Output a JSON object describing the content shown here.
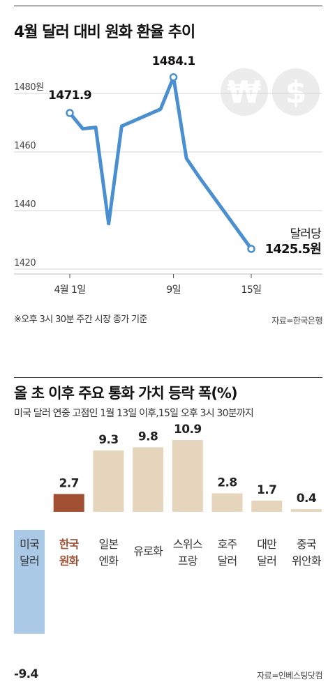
{
  "chart1": {
    "title": "4월 달러 대비 원화 환율 추이",
    "note": "※오후 3시 30분 주간 시장 종가 기준",
    "source": "자료=한국은행",
    "end_label_title": "달러당",
    "end_label_value": "1425.5원",
    "colors": {
      "line": "#4a8fd0",
      "grid": "#d5d5d5",
      "watermark": "#ececec"
    },
    "icons": [
      "won-coin-icon",
      "dollar-coin-icon"
    ]
  },
  "chart2": {
    "title": "올 초 이후 주요 통화 가치 등락 폭(%)",
    "subtitle": "미국 달러 연중 고점인 1월 13일 이후,15일 오후 3시 30분까지",
    "source": "자료=인베스팅닷컴",
    "colors": {
      "negative": "#a9c9e6",
      "highlight": "#a04f32",
      "positive": "#e6d5bd",
      "highlight_label": "#a04f32"
    }
  },
  "chart_data": [
    {
      "type": "line",
      "title": "4월 달러 대비 원화 환율 추이",
      "x_tick_labels": [
        "4월 1일",
        "9일",
        "15일"
      ],
      "y_tick_labels": [
        "1480원",
        "1460",
        "1440",
        "1420"
      ],
      "ylim": [
        1415,
        1500
      ],
      "grid": true,
      "series": [
        {
          "points": [
            {
              "day": 1,
              "value": 1471.9,
              "label": "1471.9"
            },
            {
              "day": 2,
              "value": 1466.5
            },
            {
              "day": 3,
              "value": 1467.0
            },
            {
              "day": 4,
              "value": 1434.1
            },
            {
              "day": 5,
              "value": 1467.4
            },
            {
              "day": 8,
              "value": 1473.2
            },
            {
              "day": 9,
              "value": 1484.1,
              "label": "1484.1"
            },
            {
              "day": 10,
              "value": 1456.4
            },
            {
              "day": 11,
              "value": 1449.9
            },
            {
              "day": 15,
              "value": 1425.5,
              "label": "1425.5원"
            }
          ]
        }
      ]
    },
    {
      "type": "bar",
      "title": "올 초 이후 주요 통화 가치 등락 폭(%)",
      "categories": [
        [
          "미국",
          "달러"
        ],
        [
          "한국",
          "원화"
        ],
        [
          "일본",
          "엔화"
        ],
        [
          "유로화"
        ],
        [
          "스위스",
          "프랑"
        ],
        [
          "호주",
          "달러"
        ],
        [
          "대만",
          "달러"
        ],
        [
          "중국",
          "위안화"
        ]
      ],
      "values": [
        -9.4,
        2.7,
        9.3,
        9.8,
        10.9,
        2.8,
        1.7,
        0.4
      ],
      "value_labels": [
        "-9.4",
        "2.7",
        "9.3",
        "9.8",
        "10.9",
        "2.8",
        "1.7",
        "0.4"
      ],
      "highlight_index": 1,
      "grid": false
    }
  ]
}
